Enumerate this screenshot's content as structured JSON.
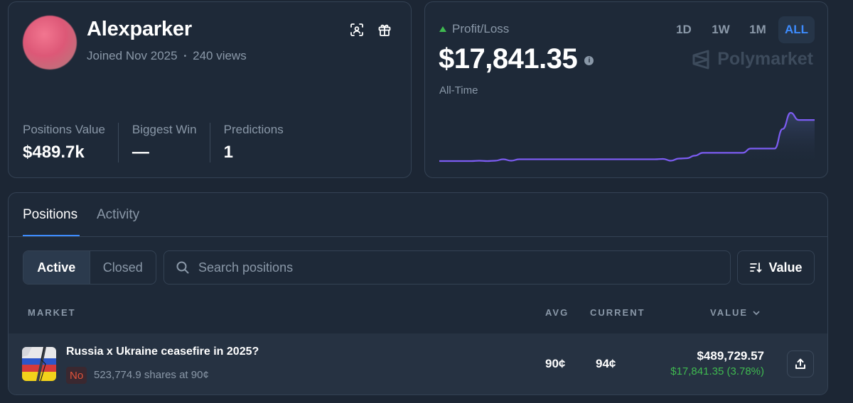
{
  "profile": {
    "username": "Alexparker",
    "joined": "Joined Nov 2025",
    "separator": "•",
    "views": "240 views",
    "icons": [
      "scan-icon",
      "gift-icon"
    ],
    "stats": [
      {
        "label": "Positions Value",
        "value": "$489.7k"
      },
      {
        "label": "Biggest Win",
        "value": "—"
      },
      {
        "label": "Predictions",
        "value": "1"
      }
    ]
  },
  "pnl": {
    "title": "Profit/Loss",
    "trend": "up",
    "value": "$17,841.35",
    "info_icon": "i",
    "period": "All-Time",
    "brand": "Polymarket",
    "ranges": [
      "1D",
      "1W",
      "1M",
      "ALL"
    ],
    "active_range": "ALL",
    "line_color": "#7c5cf2",
    "chart_data": {
      "type": "area",
      "grid": false,
      "values": [
        0.35,
        0.35,
        0.35,
        0.35,
        0.35,
        0.36,
        0.35,
        0.36,
        0.4,
        0.36,
        0.4,
        0.4,
        0.4,
        0.4,
        0.4,
        0.4,
        0.4,
        0.4,
        0.4,
        0.4,
        0.4,
        0.4,
        0.4,
        0.4,
        0.4,
        0.4,
        0.4,
        0.4,
        0.41,
        0.36,
        0.42,
        0.43,
        0.5,
        0.58,
        0.58,
        0.58,
        0.58,
        0.58,
        0.58,
        0.7,
        0.7,
        0.7,
        0.7,
        1.25,
        1.7,
        1.5,
        1.5,
        1.5
      ]
    }
  },
  "positions": {
    "tabs": [
      {
        "label": "Positions",
        "active": true
      },
      {
        "label": "Activity",
        "active": false
      }
    ],
    "filters": {
      "active": "Active",
      "closed": "Closed"
    },
    "search": {
      "placeholder": "Search positions",
      "value": ""
    },
    "sort": {
      "label": "Value"
    },
    "columns": {
      "market": "MARKET",
      "avg": "AVG",
      "current": "CURRENT",
      "value": "VALUE"
    },
    "rows": [
      {
        "title": "Russia x Ukraine ceasefire in 2025?",
        "outcome": "No",
        "shares": "523,774.9 shares at 90¢",
        "avg": "90¢",
        "current": "94¢",
        "value": "$489,729.57",
        "pnl": "$17,841.35 (3.78%)"
      }
    ]
  },
  "colors": {
    "accent": "#3d8bfd",
    "positive": "#3fb950",
    "negative": "#e0533a",
    "background": "#1c2634"
  }
}
